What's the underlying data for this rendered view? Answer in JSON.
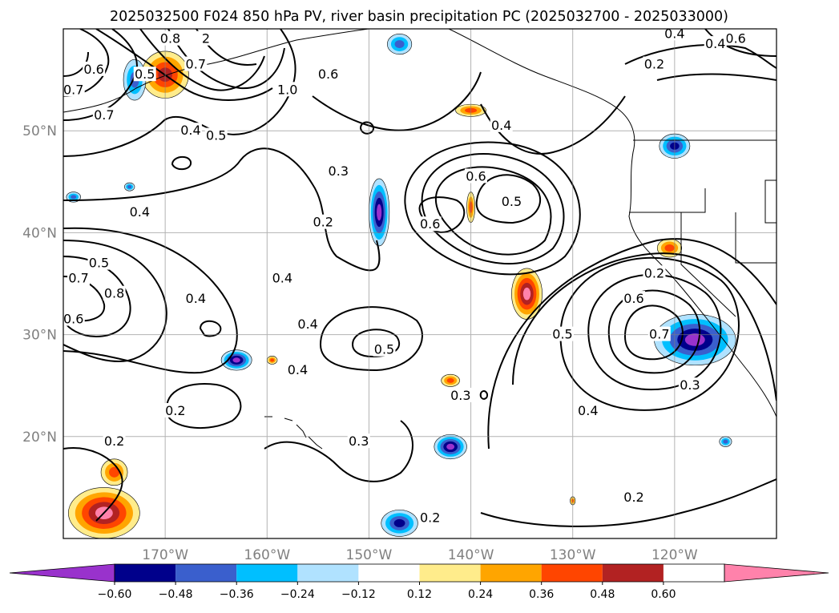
{
  "chart_data": {
    "type": "heatmap",
    "title": "2025032500 F024 850 hPa PV, river basin precipitation PC (2025032700 - 2025033000)",
    "xlabel": "",
    "ylabel": "",
    "xlim": [
      -180,
      -110
    ],
    "ylim": [
      10,
      60
    ],
    "grid": true,
    "x_ticks": [
      {
        "value": -170,
        "label": "170°W"
      },
      {
        "value": -160,
        "label": "160°W"
      },
      {
        "value": -150,
        "label": "150°W"
      },
      {
        "value": -140,
        "label": "140°W"
      },
      {
        "value": -130,
        "label": "130°W"
      },
      {
        "value": -120,
        "label": "120°W"
      }
    ],
    "y_ticks": [
      {
        "value": 20,
        "label": "20°N"
      },
      {
        "value": 30,
        "label": "30°N"
      },
      {
        "value": 40,
        "label": "40°N"
      },
      {
        "value": 50,
        "label": "50°N"
      }
    ],
    "colorbar": {
      "levels": [
        -0.72,
        -0.6,
        -0.48,
        -0.36,
        -0.24,
        -0.12,
        0.12,
        0.24,
        0.36,
        0.48,
        0.6,
        0.72
      ],
      "tick_labels": [
        "−0.60",
        "−0.48",
        "−0.36",
        "−0.24",
        "−0.12",
        "0.12",
        "0.24",
        "0.36",
        "0.48",
        "0.60"
      ],
      "tick_values": [
        -0.6,
        -0.48,
        -0.36,
        -0.24,
        -0.12,
        0.12,
        0.24,
        0.36,
        0.48,
        0.6
      ],
      "colors": [
        "#9932cc",
        "#00008b",
        "#3a5fcd",
        "#00bfff",
        "#b0e2ff",
        "#ffffff",
        "#ffec8b",
        "#ffa500",
        "#ff4500",
        "#b22222",
        "#ff82ab"
      ],
      "extend": "both"
    },
    "pv_contour_labels": [
      {
        "lon": -177,
        "lat": 56,
        "text": "0.6"
      },
      {
        "lon": -172,
        "lat": 55.5,
        "text": "0.5"
      },
      {
        "lon": -179,
        "lat": 54,
        "text": "0.7"
      },
      {
        "lon": -176,
        "lat": 51.5,
        "text": "0.7"
      },
      {
        "lon": -169.5,
        "lat": 59,
        "text": "0.8"
      },
      {
        "lon": -166,
        "lat": 59,
        "text": "2"
      },
      {
        "lon": -167,
        "lat": 56.5,
        "text": "0.7"
      },
      {
        "lon": -158,
        "lat": 54,
        "text": "1.0"
      },
      {
        "lon": -154,
        "lat": 55.5,
        "text": "0.6"
      },
      {
        "lon": -167.5,
        "lat": 50,
        "text": "0.4"
      },
      {
        "lon": -165,
        "lat": 49.5,
        "text": "0.5"
      },
      {
        "lon": -172.5,
        "lat": 42,
        "text": "0.4"
      },
      {
        "lon": -176.5,
        "lat": 37,
        "text": "0.5"
      },
      {
        "lon": -178.5,
        "lat": 35.5,
        "text": "0.7"
      },
      {
        "lon": -175,
        "lat": 34,
        "text": "0.8"
      },
      {
        "lon": -179,
        "lat": 31.5,
        "text": "0.6"
      },
      {
        "lon": -167,
        "lat": 33.5,
        "text": "0.4"
      },
      {
        "lon": -158.5,
        "lat": 35.5,
        "text": "0.4"
      },
      {
        "lon": -153,
        "lat": 46,
        "text": "0.3"
      },
      {
        "lon": -154.5,
        "lat": 41,
        "text": "0.2"
      },
      {
        "lon": -144,
        "lat": 40.8,
        "text": "0.6"
      },
      {
        "lon": -139.5,
        "lat": 45.5,
        "text": "0.6"
      },
      {
        "lon": -136,
        "lat": 43,
        "text": "0.5"
      },
      {
        "lon": -137,
        "lat": 50.5,
        "text": "0.4"
      },
      {
        "lon": -157,
        "lat": 26.5,
        "text": "0.4"
      },
      {
        "lon": -156,
        "lat": 31,
        "text": "0.4"
      },
      {
        "lon": -148.5,
        "lat": 28.5,
        "text": "0.5"
      },
      {
        "lon": -141,
        "lat": 24,
        "text": "0.3"
      },
      {
        "lon": -131,
        "lat": 30,
        "text": "0.5"
      },
      {
        "lon": -124,
        "lat": 33.5,
        "text": "0.6"
      },
      {
        "lon": -121.5,
        "lat": 30,
        "text": "0.7"
      },
      {
        "lon": -122,
        "lat": 36,
        "text": "0.2"
      },
      {
        "lon": -118.5,
        "lat": 25,
        "text": "0.3"
      },
      {
        "lon": -128.5,
        "lat": 22.5,
        "text": "0.4"
      },
      {
        "lon": -169,
        "lat": 22.5,
        "text": "0.2"
      },
      {
        "lon": -151,
        "lat": 19.5,
        "text": "0.3"
      },
      {
        "lon": -144,
        "lat": 12,
        "text": "0.2"
      },
      {
        "lon": -124,
        "lat": 14,
        "text": "0.2"
      },
      {
        "lon": -175,
        "lat": 19.5,
        "text": "0.2"
      },
      {
        "lon": -122,
        "lat": 56.5,
        "text": "0.2"
      },
      {
        "lon": -114,
        "lat": 59,
        "text": "0.6"
      },
      {
        "lon": -116,
        "lat": 58.5,
        "text": "0.4"
      },
      {
        "lon": -120,
        "lat": 59.5,
        "text": "0.4"
      }
    ],
    "precip_pc_features": [
      {
        "sign": "positive",
        "lon": -170,
        "lat": 55.5,
        "rx": 2.3,
        "ry": 2.3,
        "peak": 0.48
      },
      {
        "sign": "negative",
        "lon": -173,
        "lat": 55,
        "rx": 1.1,
        "ry": 2.0,
        "peak": -0.36
      },
      {
        "sign": "negative",
        "lon": -149,
        "lat": 42,
        "rx": 1.0,
        "ry": 3.3,
        "peak": -0.6
      },
      {
        "sign": "positive",
        "lon": -140,
        "lat": 42.5,
        "rx": 0.4,
        "ry": 1.5,
        "peak": 0.36
      },
      {
        "sign": "positive",
        "lon": -140,
        "lat": 52,
        "rx": 1.5,
        "ry": 0.6,
        "peak": 0.36
      },
      {
        "sign": "positive",
        "lon": -134.5,
        "lat": 34,
        "rx": 1.5,
        "ry": 2.5,
        "peak": 0.6
      },
      {
        "sign": "negative",
        "lon": -118,
        "lat": 29.5,
        "rx": 4.0,
        "ry": 2.5,
        "peak": -0.6
      },
      {
        "sign": "positive",
        "lon": -120.5,
        "lat": 38.5,
        "rx": 1.2,
        "ry": 0.9,
        "peak": 0.36
      },
      {
        "sign": "negative",
        "lon": -120,
        "lat": 48.5,
        "rx": 1.5,
        "ry": 1.2,
        "peak": -0.48
      },
      {
        "sign": "negative",
        "lon": -147,
        "lat": 58.5,
        "rx": 1.2,
        "ry": 1.0,
        "peak": -0.36
      },
      {
        "sign": "negative",
        "lon": -163,
        "lat": 27.5,
        "rx": 1.5,
        "ry": 1.0,
        "peak": -0.6
      },
      {
        "sign": "negative",
        "lon": -142,
        "lat": 19,
        "rx": 1.6,
        "ry": 1.2,
        "peak": -0.6
      },
      {
        "sign": "negative",
        "lon": -147,
        "lat": 11.5,
        "rx": 1.8,
        "ry": 1.3,
        "peak": -0.48
      },
      {
        "sign": "positive",
        "lon": -176,
        "lat": 12.5,
        "rx": 3.5,
        "ry": 2.5,
        "peak": 0.6
      },
      {
        "sign": "positive",
        "lon": -175,
        "lat": 16.5,
        "rx": 1.3,
        "ry": 1.3,
        "peak": 0.36
      },
      {
        "sign": "positive",
        "lon": -142,
        "lat": 25.5,
        "rx": 0.9,
        "ry": 0.6,
        "peak": 0.36
      },
      {
        "sign": "negative",
        "lon": -115,
        "lat": 19.5,
        "rx": 0.6,
        "ry": 0.5,
        "peak": -0.36
      },
      {
        "sign": "negative",
        "lon": -179,
        "lat": 43.5,
        "rx": 0.7,
        "ry": 0.5,
        "peak": -0.36
      },
      {
        "sign": "negative",
        "lon": -173.5,
        "lat": 44.5,
        "rx": 0.5,
        "ry": 0.4,
        "peak": -0.36
      },
      {
        "sign": "positive",
        "lon": -159.5,
        "lat": 27.5,
        "rx": 0.5,
        "ry": 0.4,
        "peak": 0.36
      },
      {
        "sign": "positive",
        "lon": -130,
        "lat": 13.7,
        "rx": 0.25,
        "ry": 0.4,
        "peak": 0.36
      }
    ]
  }
}
